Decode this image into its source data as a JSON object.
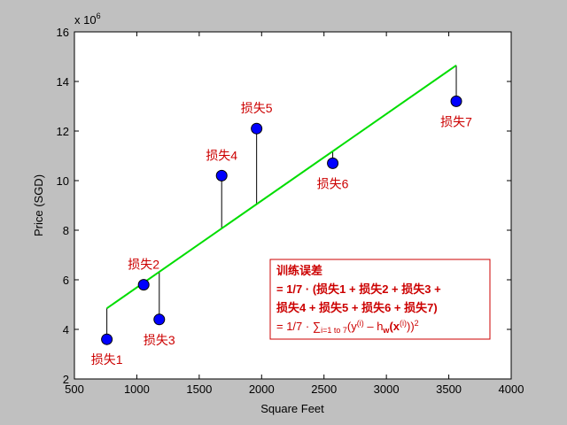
{
  "chart_data": {
    "type": "scatter",
    "xlabel": "Square Feet",
    "ylabel": "Price (SGD)",
    "y_multiplier_label": "x 10",
    "y_multiplier_exponent": "6",
    "xlim": [
      500,
      4000
    ],
    "ylim": [
      2,
      16
    ],
    "xticks": [
      500,
      1000,
      1500,
      2000,
      2500,
      3000,
      3500,
      4000
    ],
    "yticks": [
      2,
      4,
      6,
      8,
      10,
      12,
      14,
      16
    ],
    "grid": false,
    "colors": {
      "points": "#0000ff",
      "fit_line": "#00dd00",
      "residuals": "#000000",
      "annotations": "#cc0000",
      "plot_bg": "#ffffff",
      "figure_bg": "#c0c0c0"
    },
    "points": [
      {
        "x": 760,
        "y": 3.6,
        "label": "损失1",
        "label_pos": "below"
      },
      {
        "x": 1055,
        "y": 5.8,
        "label": "损失2",
        "label_pos": "above"
      },
      {
        "x": 1180,
        "y": 4.4,
        "label": "损失3",
        "label_pos": "below"
      },
      {
        "x": 1680,
        "y": 10.2,
        "label": "损失4",
        "label_pos": "above"
      },
      {
        "x": 1960,
        "y": 12.1,
        "label": "损失5",
        "label_pos": "above"
      },
      {
        "x": 2570,
        "y": 10.7,
        "label": "损失6",
        "label_pos": "below"
      },
      {
        "x": 3560,
        "y": 13.2,
        "label": "损失7",
        "label_pos": "below"
      }
    ],
    "fit_line": {
      "x": [
        760,
        3560
      ],
      "y": [
        4.85,
        14.65
      ]
    }
  },
  "formula": {
    "line1": "训练误差",
    "line2": "= 1/7 · (损失1 + 损失2 + 损失3 +",
    "line3": "损失4 + 损失5 + 损失6 + 损失7)",
    "line4_prefix": "= 1/7 · ∑",
    "line4_sub": "i=1 to 7",
    "line4_open": "(y",
    "line4_sup1": "(i)",
    "line4_minus": " – h",
    "line4_w": "w",
    "line4_x": "(x",
    "line4_sup2": "(i)",
    "line4_close": "))",
    "line4_sq": "2"
  }
}
